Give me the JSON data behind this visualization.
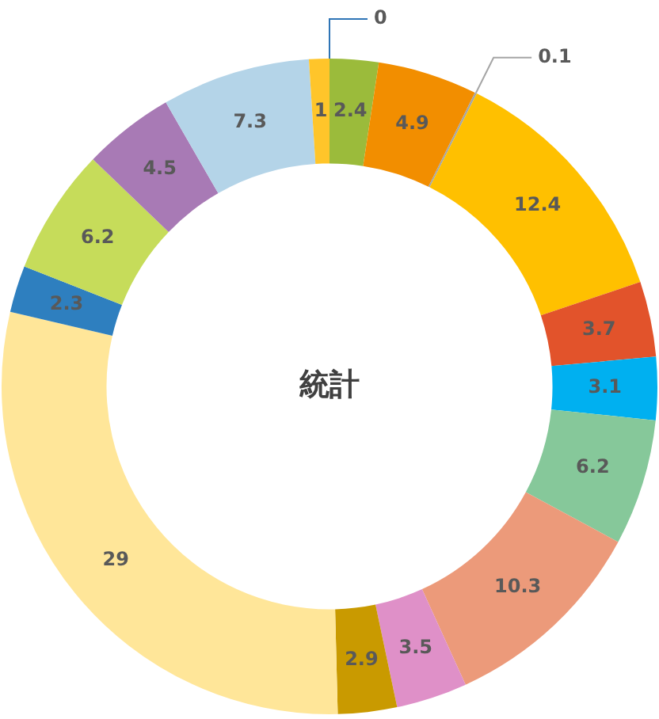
{
  "chart_data": {
    "type": "donut",
    "title": "統計",
    "categories": [
      null,
      null,
      null,
      null,
      null,
      null,
      null,
      null,
      null,
      null,
      null,
      null,
      null,
      null,
      null,
      null,
      null
    ],
    "values": [
      0,
      2.4,
      4.9,
      0.1,
      12.4,
      3.7,
      3.1,
      6.2,
      10.3,
      3.5,
      2.9,
      29,
      2.3,
      6.2,
      4.5,
      7.3,
      1
    ],
    "colors": [
      "#2e75b6",
      "#9bbb3b",
      "#f28e00",
      "#a5a5a5",
      "#ffc000",
      "#e2532b",
      "#00b0f0",
      "#86c89a",
      "#ec9a7a",
      "#df90c8",
      "#c99a00",
      "#ffe699",
      "#2e7fbf",
      "#c6dc5a",
      "#a87ab5",
      "#b4d4e8",
      "#ffc52a"
    ],
    "value_labels": [
      "0",
      "2.4",
      "4.9",
      "0.1",
      "12.4",
      "3.7",
      "3.1",
      "6.2",
      "10.3",
      "3.5",
      "2.9",
      "29",
      "2.3",
      "6.2",
      "4.5",
      "7.3",
      "1"
    ],
    "legend": false
  }
}
